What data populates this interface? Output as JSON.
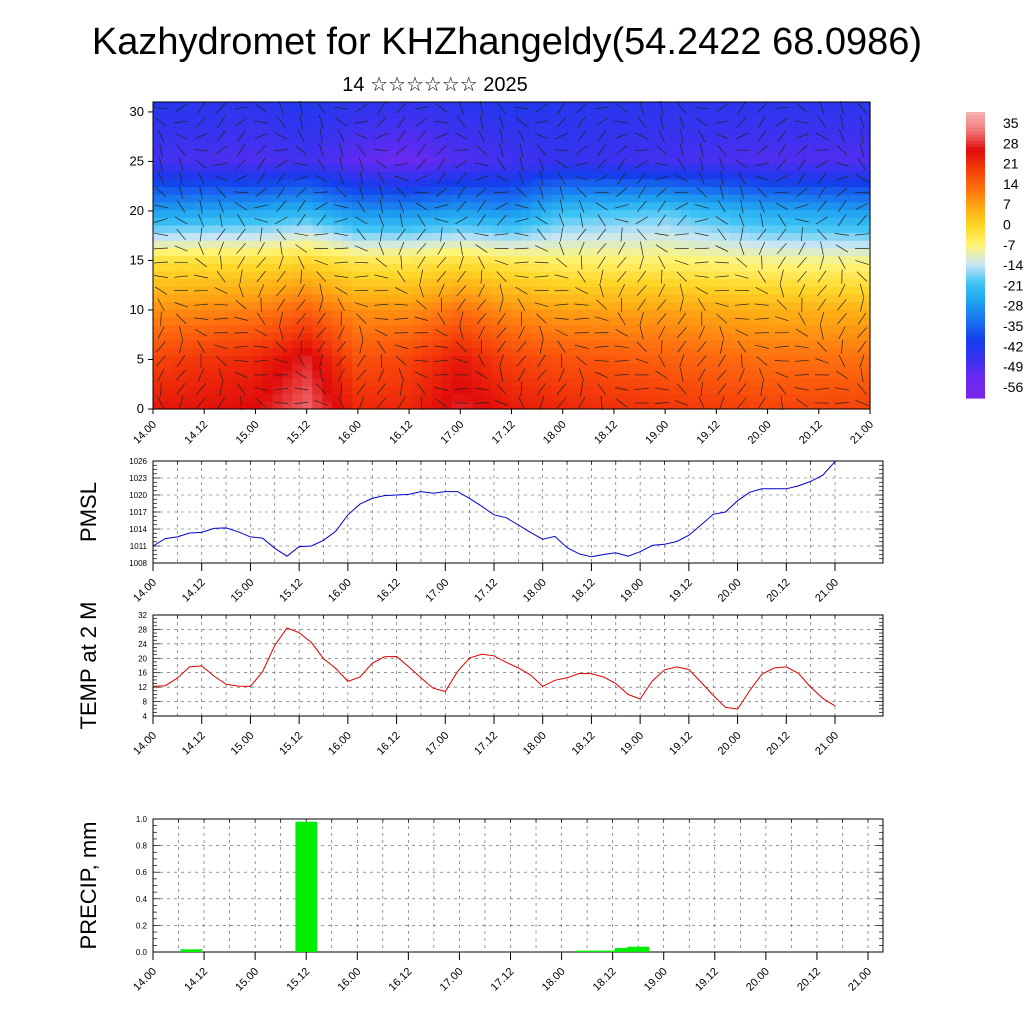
{
  "header": {
    "title": "Kazhydromet for KHZhangeldy(54.2422 68.0986)",
    "subtitle": "14 ☆☆☆☆☆☆ 2025"
  },
  "colorbar": {
    "labels": [
      "35",
      "28",
      "21",
      "14",
      "7",
      "0",
      "-7",
      "-14",
      "-21",
      "-28",
      "-35",
      "-42",
      "-49",
      "-56"
    ]
  },
  "chart_data": [
    {
      "type": "heatmap",
      "name": "cross-section",
      "xlabel": "",
      "ylabel": "",
      "ylim": [
        0,
        31
      ],
      "yticks": [
        "0",
        "5",
        "10",
        "15",
        "20",
        "25",
        "30"
      ],
      "x_ticks": [
        "14.00",
        "14.12",
        "15.00",
        "15.12",
        "16.00",
        "16.12",
        "17.00",
        "17.12",
        "18.00",
        "18.12",
        "19.00",
        "19.12",
        "20.00",
        "20.12",
        "21.00"
      ],
      "value_range": [
        -56,
        35
      ],
      "layers_y": [
        0,
        5,
        10,
        15,
        20,
        25,
        31
      ],
      "layer_values_at_days": {
        "x": [
          0,
          1,
          1.5,
          2,
          2.5,
          3,
          3.5,
          4,
          5,
          6,
          7
        ],
        "y0": [
          26,
          28,
          34,
          24,
          24,
          30,
          26,
          24,
          22,
          20,
          20
        ],
        "y5": [
          20,
          24,
          30,
          18,
          20,
          26,
          20,
          18,
          16,
          14,
          14
        ],
        "y10": [
          10,
          12,
          16,
          10,
          10,
          14,
          10,
          8,
          8,
          6,
          6
        ],
        "y15": [
          -2,
          -2,
          0,
          -4,
          -4,
          -2,
          -4,
          -6,
          -6,
          -8,
          -8
        ],
        "y20": [
          -28,
          -26,
          -24,
          -30,
          -30,
          -28,
          -30,
          -22,
          -20,
          -26,
          -28
        ],
        "y25": [
          -50,
          -52,
          -50,
          -54,
          -56,
          -52,
          -50,
          -48,
          -50,
          -52,
          -52
        ],
        "y31": [
          -45,
          -46,
          -44,
          -46,
          -47,
          -46,
          -44,
          -45,
          -46,
          -46,
          -46
        ]
      },
      "grid": false
    },
    {
      "type": "line",
      "name": "PMSL",
      "ylabel": "PMSL",
      "ylim": [
        1008,
        1026
      ],
      "yticks": [
        "1008",
        "1011",
        "1014",
        "1017",
        "1020",
        "1023",
        "1026"
      ],
      "x_ticks": [
        "14.00",
        "14.12",
        "15.00",
        "15.12",
        "16.00",
        "16.12",
        "17.00",
        "17.12",
        "18.00",
        "18.12",
        "19.00",
        "19.12",
        "20.00",
        "20.12",
        "21.00"
      ],
      "series": [
        {
          "color": "#0000cc",
          "x": [
            0,
            0.125,
            0.25,
            0.375,
            0.5,
            0.625,
            0.75,
            0.875,
            1,
            1.125,
            1.25,
            1.375,
            1.5,
            1.625,
            1.75,
            1.875,
            2,
            2.125,
            2.25,
            2.375,
            2.5,
            2.625,
            2.75,
            2.875,
            3,
            3.125,
            3.25,
            3.375,
            3.5,
            3.625,
            3.75,
            3.875,
            4,
            4.125,
            4.25,
            4.375,
            4.5,
            4.625,
            4.75,
            4.875,
            5,
            5.125,
            5.25,
            5.375,
            5.5,
            5.625,
            5.75,
            5.875,
            6,
            6.125,
            6.25,
            6.375,
            6.5,
            6.625,
            6.75,
            6.875,
            7
          ],
          "values": [
            1011,
            1012.3,
            1012.6,
            1013.3,
            1013.4,
            1014.1,
            1014.2,
            1013.5,
            1012.6,
            1012.4,
            1010.6,
            1009.2,
            1010.9,
            1011.0,
            1012.0,
            1013.6,
            1016.5,
            1018.4,
            1019.4,
            1019.9,
            1020.0,
            1020.1,
            1020.6,
            1020.3,
            1020.6,
            1020.6,
            1019.4,
            1018.0,
            1016.5,
            1016.0,
            1014.7,
            1013.4,
            1012.2,
            1012.7,
            1010.7,
            1009.6,
            1009.1,
            1009.5,
            1009.8,
            1009.2,
            1010.0,
            1011.1,
            1011.3,
            1011.8,
            1012.9,
            1014.7,
            1016.6,
            1017.0,
            1019.0,
            1020.5,
            1021.1,
            1021.1,
            1021.1,
            1021.6,
            1022.4,
            1023.5,
            1025.9
          ]
        }
      ],
      "grid": true
    },
    {
      "type": "line",
      "name": "TEMP at 2 M",
      "ylabel": "TEMP at 2 M",
      "ylim": [
        4,
        32
      ],
      "yticks": [
        "4",
        "8",
        "12",
        "16",
        "20",
        "24",
        "28",
        "32"
      ],
      "x_ticks": [
        "14.00",
        "14.12",
        "15.00",
        "15.12",
        "16.00",
        "16.12",
        "17.00",
        "17.12",
        "18.00",
        "18.12",
        "19.00",
        "19.12",
        "20.00",
        "20.12",
        "21.00"
      ],
      "series": [
        {
          "color": "#e00000",
          "x": [
            0,
            0.125,
            0.25,
            0.375,
            0.5,
            0.625,
            0.75,
            0.875,
            1,
            1.125,
            1.25,
            1.375,
            1.5,
            1.625,
            1.75,
            1.875,
            2,
            2.125,
            2.25,
            2.375,
            2.5,
            2.625,
            2.75,
            2.875,
            3,
            3.125,
            3.25,
            3.375,
            3.5,
            3.625,
            3.75,
            3.875,
            4,
            4.125,
            4.25,
            4.375,
            4.5,
            4.625,
            4.75,
            4.875,
            5,
            5.125,
            5.25,
            5.375,
            5.5,
            5.625,
            5.75,
            5.875,
            6,
            6.125,
            6.25,
            6.375,
            6.5,
            6.625,
            6.75,
            6.875,
            7
          ],
          "values": [
            12.2,
            12.4,
            14.5,
            17.6,
            17.9,
            15.1,
            12.8,
            12.3,
            12.2,
            16.3,
            23.6,
            28.4,
            27.1,
            24.4,
            19.9,
            17.2,
            13.6,
            14.8,
            18.6,
            20.4,
            20.5,
            17.6,
            14.6,
            11.7,
            10.8,
            16.3,
            20.1,
            21.1,
            20.7,
            18.9,
            17.3,
            15.4,
            12.2,
            13.9,
            14.6,
            15.8,
            15.7,
            14.8,
            13.0,
            10.0,
            8.7,
            13.7,
            16.8,
            17.6,
            16.9,
            13.4,
            9.7,
            6.4,
            5.9,
            11.1,
            15.6,
            17.3,
            17.6,
            15.8,
            12.0,
            8.9,
            6.8
          ]
        }
      ],
      "grid": true
    },
    {
      "type": "bar",
      "name": "PRECIP, mm",
      "ylabel": "PRECIP, mm",
      "ylim": [
        0,
        1.0
      ],
      "yticks": [
        "0.0",
        "0.2",
        "0.4",
        "0.6",
        "0.8",
        "1.0"
      ],
      "x_ticks": [
        "14.00",
        "14.12",
        "15.00",
        "15.12",
        "16.00",
        "16.12",
        "17.00",
        "17.12",
        "18.00",
        "18.12",
        "19.00",
        "19.12",
        "20.00",
        "20.12",
        "21.00"
      ],
      "series": [
        {
          "color": "#00ee00",
          "x": [
            0.375,
            1.5,
            4.25,
            4.375,
            4.5,
            4.625,
            4.75
          ],
          "values": [
            0.02,
            0.98,
            0.01,
            0.01,
            0.01,
            0.03,
            0.04
          ]
        }
      ],
      "grid": true
    }
  ]
}
